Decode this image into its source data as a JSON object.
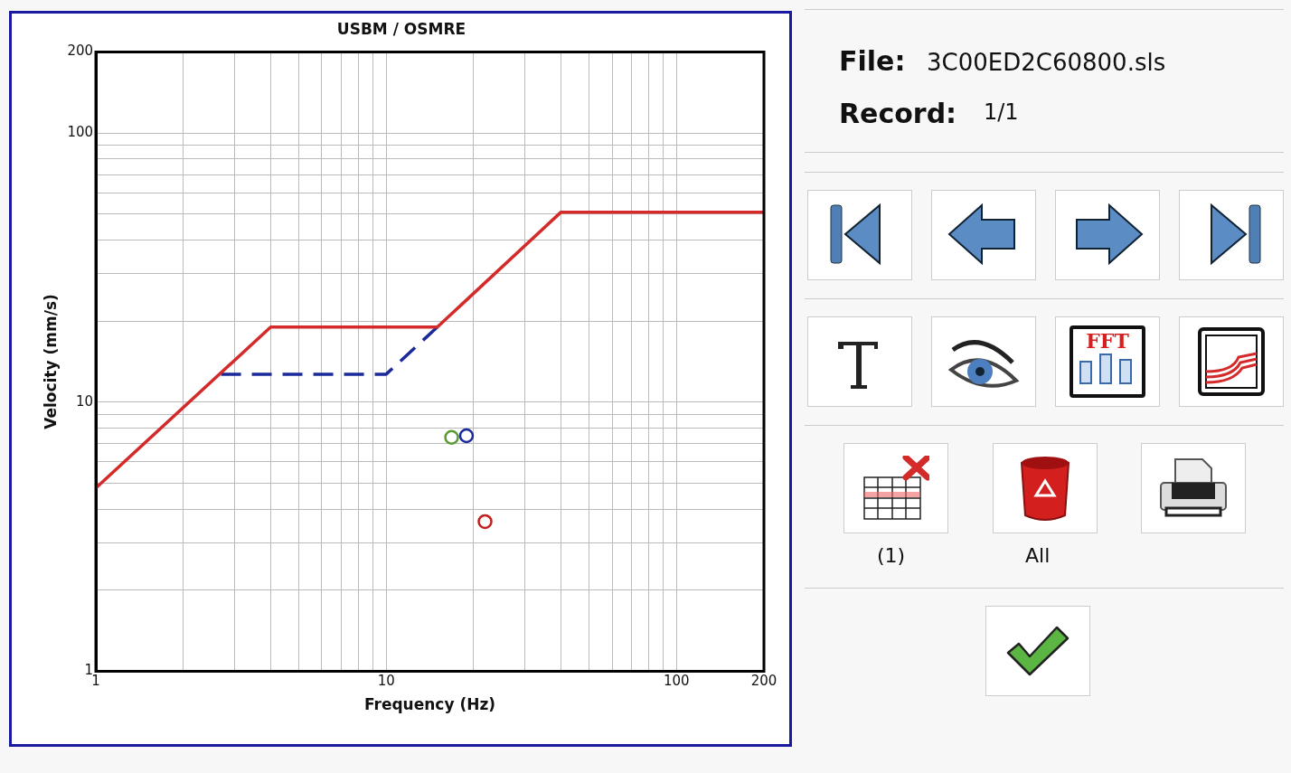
{
  "chart_data": [
    {
      "type": "line",
      "title": "USBM / OSMRE",
      "xlabel": "Frequency (Hz)",
      "ylabel": "Velocity (mm/s)",
      "log": "xy",
      "grid": true,
      "xlim": [
        1,
        200
      ],
      "ylim": [
        1,
        200
      ],
      "xticks": [
        1,
        {
          "value": 2,
          "label": null
        },
        {
          "value": 3,
          "label": null
        },
        {
          "value": 4,
          "label": null
        },
        {
          "value": 5,
          "label": null
        },
        {
          "value": 6,
          "label": null
        },
        {
          "value": 7,
          "label": null
        },
        {
          "value": 8,
          "label": null
        },
        {
          "value": 9,
          "label": null
        },
        10,
        {
          "value": 20,
          "label": null
        },
        {
          "value": 30,
          "label": null
        },
        {
          "value": 40,
          "label": null
        },
        {
          "value": 50,
          "label": null
        },
        {
          "value": 60,
          "label": null
        },
        {
          "value": 70,
          "label": null
        },
        {
          "value": 80,
          "label": null
        },
        {
          "value": 90,
          "label": null
        },
        100,
        200
      ],
      "yticks": [
        1,
        {
          "value": 2,
          "label": null
        },
        {
          "value": 3,
          "label": null
        },
        {
          "value": 4,
          "label": null
        },
        {
          "value": 5,
          "label": null
        },
        {
          "value": 6,
          "label": null
        },
        {
          "value": 7,
          "label": null
        },
        {
          "value": 8,
          "label": null
        },
        {
          "value": 9,
          "label": null
        },
        10,
        {
          "value": 20,
          "label": null
        },
        {
          "value": 30,
          "label": null
        },
        {
          "value": 40,
          "label": null
        },
        {
          "value": 50,
          "label": null
        },
        {
          "value": 60,
          "label": null
        },
        {
          "value": 70,
          "label": null
        },
        {
          "value": 80,
          "label": null
        },
        {
          "value": 90,
          "label": null
        },
        100,
        200
      ],
      "series": [
        {
          "type": "line",
          "color": "#d42a2a",
          "x": [
            1,
            4,
            15,
            40,
            200
          ],
          "values": [
            4.8,
            19,
            19,
            50.8,
            50.8
          ],
          "marker": "none",
          "line_style": "solid"
        },
        {
          "type": "line",
          "color": "#1a2a9a",
          "x": [
            2.7,
            10,
            15
          ],
          "values": [
            12.7,
            12.7,
            19
          ],
          "marker": "none",
          "line_style": "dashed"
        },
        {
          "type": "scatter",
          "colors": [
            "#5a9a30",
            "#1a2a9a",
            "#c42020"
          ],
          "x": [
            16.8,
            18.9,
            21.9
          ],
          "values": [
            7.4,
            7.5,
            3.6
          ],
          "marker": "circle"
        }
      ]
    },
    {
      "type": "other",
      "annotations": [
        "File:",
        "3C00ED2C60800.sls",
        "Record:",
        "1/1",
        "FFT",
        "(1)",
        "All"
      ]
    }
  ]
}
